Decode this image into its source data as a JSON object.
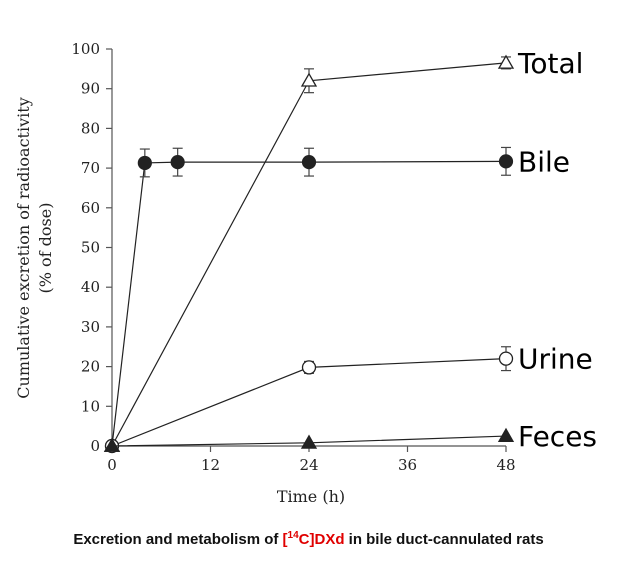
{
  "chart_data": {
    "type": "line",
    "xlabel": "Time (h)",
    "ylabel_line1": "Cumulative excretion of radioactivity",
    "ylabel_line2": "(% of dose)",
    "xlim": [
      0,
      48
    ],
    "ylim": [
      0,
      100
    ],
    "xticks": [
      "0",
      "12",
      "24",
      "36",
      "48"
    ],
    "yticks": [
      "0",
      "10",
      "20",
      "30",
      "40",
      "50",
      "60",
      "70",
      "80",
      "90",
      "100"
    ],
    "grid": false,
    "series": [
      {
        "name": "Total",
        "marker": "open-triangle",
        "x": [
          0,
          24,
          48
        ],
        "y": [
          0,
          92,
          96.5
        ],
        "err": [
          0,
          3,
          1.5
        ]
      },
      {
        "name": "Bile",
        "marker": "filled-circle",
        "x": [
          0,
          4,
          8,
          24,
          48
        ],
        "y": [
          0,
          71.3,
          71.5,
          71.5,
          71.7
        ],
        "err": [
          0,
          3.5,
          3.5,
          3.5,
          3.5
        ]
      },
      {
        "name": "Urine",
        "marker": "open-circle",
        "x": [
          0,
          24,
          48
        ],
        "y": [
          0,
          19.8,
          22
        ],
        "err": [
          0,
          1.5,
          3
        ]
      },
      {
        "name": "Feces",
        "marker": "filled-triangle",
        "x": [
          0,
          24,
          48
        ],
        "y": [
          0,
          0.8,
          2.5
        ],
        "err": [
          0,
          0,
          0
        ]
      }
    ]
  },
  "caption": {
    "prefix": "Excretion and metabolism of ",
    "compound_bracket_open": "[",
    "compound_isotope": "14",
    "compound_rest": "C]DXd",
    "suffix": " in bile duct-cannulated rats"
  }
}
